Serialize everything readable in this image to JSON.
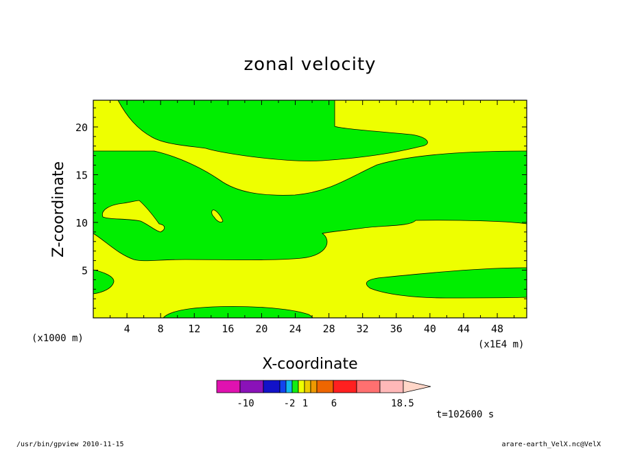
{
  "chart_data": {
    "type": "heatmap",
    "title": "zonal velocity",
    "xlabel": "X-coordinate",
    "ylabel": "Z-coordinate",
    "x_unit_label": "(x1E4 m)",
    "y_unit_label": "(x1000 m)",
    "xlim": [
      0,
      51.5
    ],
    "ylim": [
      0,
      22.8
    ],
    "x_ticks": [
      4,
      8,
      12,
      16,
      20,
      24,
      28,
      32,
      36,
      40,
      44,
      48
    ],
    "y_ticks": [
      5,
      10,
      15,
      20
    ],
    "x_tick_labels": [
      "4",
      "8",
      "12",
      "16",
      "20",
      "24",
      "28",
      "32",
      "36",
      "40",
      "44",
      "48"
    ],
    "y_tick_labels": [
      "5",
      "10",
      "15",
      "20"
    ],
    "fill_levels": [
      {
        "name": "negative",
        "color": "#00ee00"
      },
      {
        "name": "positive",
        "color": "#eeff00"
      }
    ],
    "regions": [
      {
        "level": "negative",
        "description": "upper band",
        "x_range": [
          3,
          40
        ],
        "y_range": [
          16.5,
          22.8
        ]
      },
      {
        "level": "negative",
        "description": "mid band",
        "x_range": [
          0,
          51.5
        ],
        "y_range": [
          6,
          17.5
        ]
      },
      {
        "level": "negative",
        "description": "lower right lens",
        "x_range": [
          32,
          51.5
        ],
        "y_range": [
          2.2,
          5.3
        ]
      },
      {
        "level": "negative",
        "description": "left edge lens",
        "x_range": [
          0,
          2.5
        ],
        "y_range": [
          2.5,
          5
        ]
      },
      {
        "level": "negative",
        "description": "bottom lens",
        "x_range": [
          8,
          26
        ],
        "y_range": [
          0,
          1.2
        ]
      },
      {
        "level": "positive",
        "description": "top band",
        "x_range": [
          0,
          51.5
        ],
        "y_range": [
          17.5,
          22.8
        ]
      },
      {
        "level": "positive",
        "description": "lower band",
        "x_range": [
          0,
          51.5
        ],
        "y_range": [
          0,
          10.5
        ]
      }
    ],
    "colorbar": {
      "colors": [
        "#e012b0",
        "#8a12b8",
        "#1212c8",
        "#1244ee",
        "#12b8ee",
        "#12ee12",
        "#eeff00",
        "#eecc00",
        "#ee9900",
        "#ee6600",
        "#ff2020",
        "#ff7070",
        "#ffb8b8",
        "#ffd6c8"
      ],
      "labels": [
        "-10",
        "-2",
        "1",
        "6",
        "18.5"
      ],
      "extend": "max"
    },
    "time_label": "t=102600 s"
  },
  "footer": {
    "left": "/usr/bin/gpview  2010-11-15",
    "right": "arare-earth_VelX.nc@VelX"
  }
}
